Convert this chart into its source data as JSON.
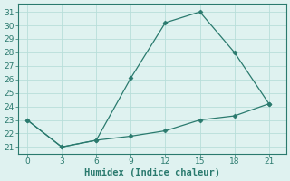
{
  "line1_x": [
    0,
    3,
    6,
    9,
    12,
    15,
    18,
    21
  ],
  "line1_y": [
    23,
    21,
    21.5,
    26.1,
    30.2,
    31,
    28,
    24.2
  ],
  "line2_x": [
    0,
    3,
    6,
    9,
    12,
    15,
    18,
    21
  ],
  "line2_y": [
    23,
    21,
    21.5,
    21.8,
    22.2,
    23.0,
    23.3,
    24.2
  ],
  "line_color": "#2a7a6e",
  "marker": "D",
  "markersize": 2.5,
  "linewidth": 0.9,
  "xlabel": "Humidex (Indice chaleur)",
  "xlabel_fontsize": 7.5,
  "background_color": "#dff2f0",
  "grid_color": "#b8deda",
  "ylim": [
    20.5,
    31.6
  ],
  "xlim": [
    -0.8,
    22.5
  ],
  "yticks": [
    21,
    22,
    23,
    24,
    25,
    26,
    27,
    28,
    29,
    30,
    31
  ],
  "xticks": [
    0,
    3,
    6,
    9,
    12,
    15,
    18,
    21
  ],
  "tick_fontsize": 6.5,
  "spine_color": "#2a7a6e"
}
